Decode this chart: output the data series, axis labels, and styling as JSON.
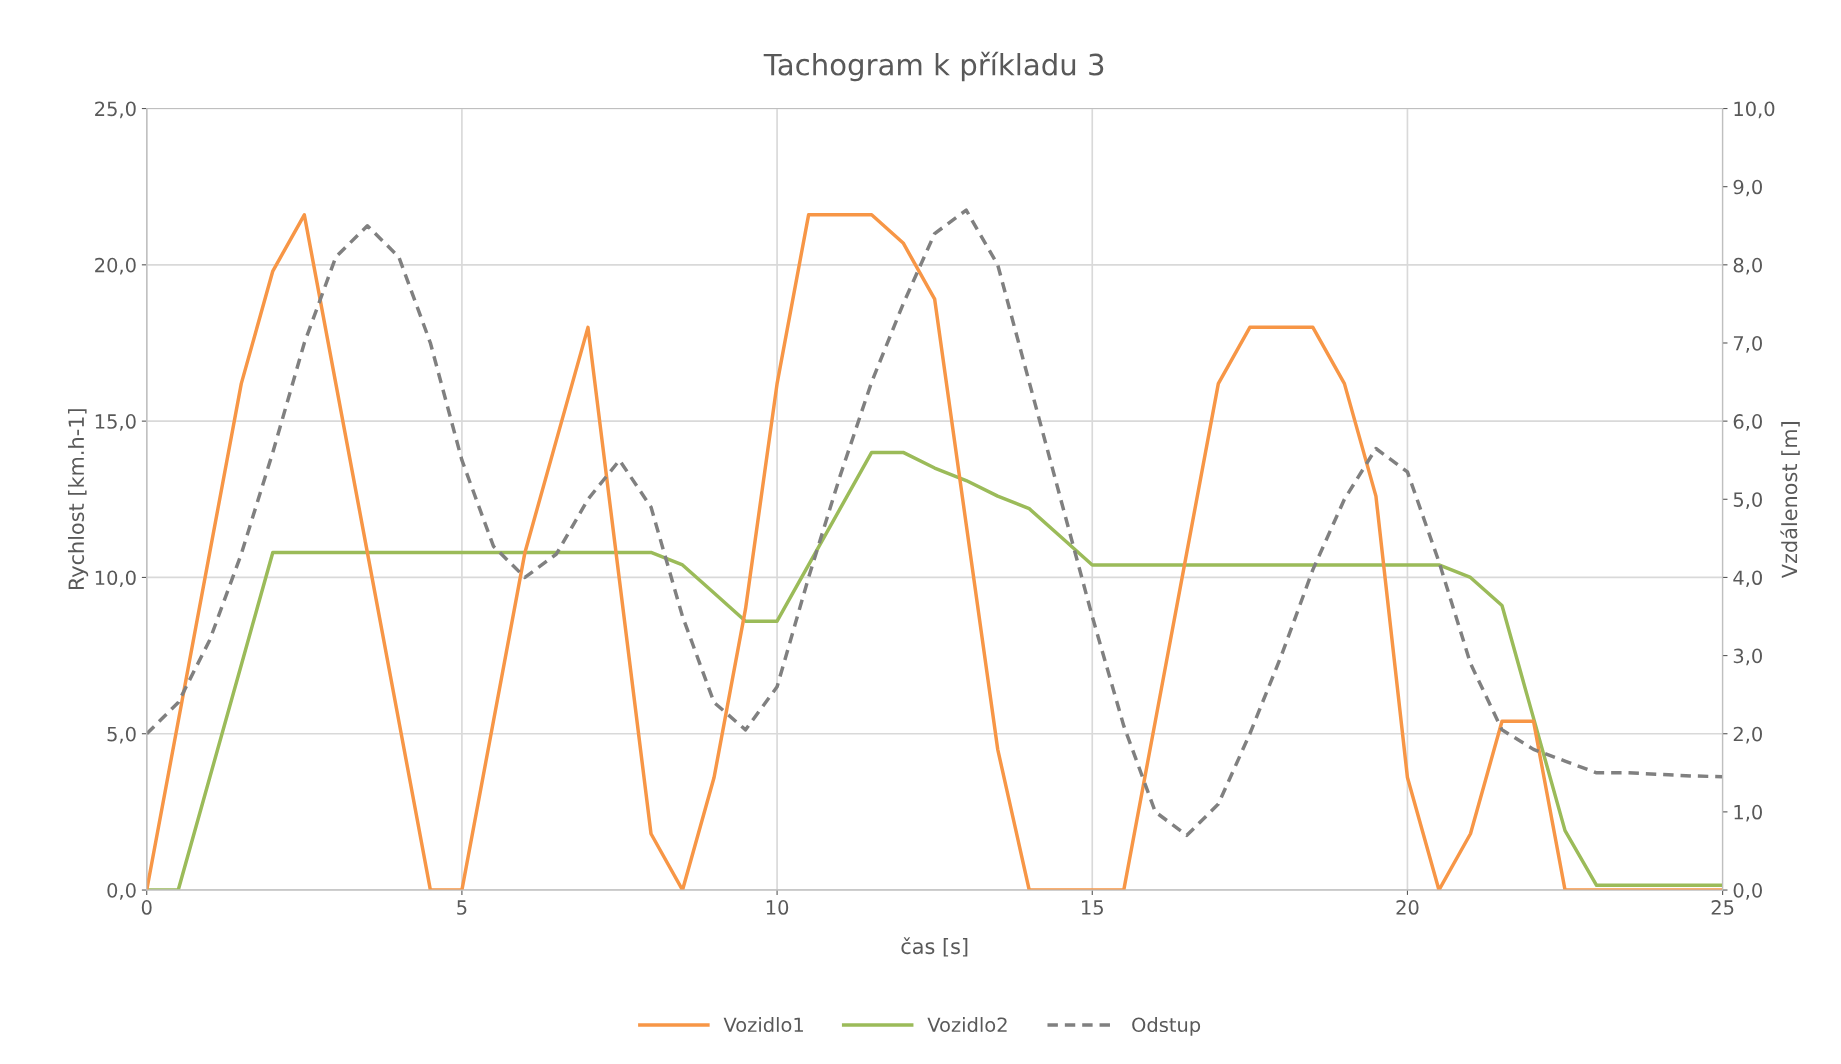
{
  "chart_data": {
    "type": "line",
    "title": "Tachogram k příkladu 3",
    "xlabel": "čas [s]",
    "ylabel": "Rychlost [km.h-1]",
    "y2label": "Vzdálenost [m]",
    "x": [
      0,
      0.5,
      1,
      1.5,
      2,
      2.5,
      3,
      3.5,
      4,
      4.5,
      5,
      5.5,
      6,
      6.5,
      7,
      7.5,
      8,
      8.5,
      9,
      9.5,
      10,
      10.5,
      11,
      11.5,
      12,
      12.5,
      13,
      13.5,
      14,
      14.5,
      15,
      15.5,
      16,
      16.5,
      17,
      17.5,
      18,
      18.5,
      19,
      19.5,
      20,
      20.5,
      21,
      21.5,
      22,
      22.5,
      23,
      23.5,
      24,
      24.5,
      25
    ],
    "series": [
      {
        "name": "Vozidlo1",
        "color": "#f79646",
        "line_style": "solid",
        "values": [
          0,
          5.4,
          10.8,
          16.2,
          19.8,
          21.6,
          16.2,
          10.8,
          5.4,
          0,
          0,
          5.4,
          10.8,
          14.4,
          18,
          9.9,
          1.8,
          0,
          3.6,
          9,
          16.2,
          21.6,
          21.6,
          21.6,
          20.7,
          18.9,
          11.7,
          4.5,
          0,
          0,
          0,
          0,
          5.4,
          10.8,
          16.2,
          18,
          18,
          18,
          16.2,
          12.6,
          3.6,
          0,
          1.8,
          5.4,
          5.4,
          0,
          0,
          0,
          0,
          0,
          0
        ]
      },
      {
        "name": "Vozidlo2",
        "color": "#9bbb59",
        "line_style": "solid",
        "values": [
          0,
          0,
          3.6,
          7.2,
          10.8,
          10.8,
          10.8,
          10.8,
          10.8,
          10.8,
          10.8,
          10.8,
          10.8,
          10.8,
          10.8,
          10.8,
          10.8,
          10.4,
          9.5,
          8.6,
          8.6,
          10.4,
          12.2,
          14,
          14,
          13.5,
          13.1,
          12.6,
          12.2,
          11.3,
          10.4,
          10.4,
          10.4,
          10.4,
          10.4,
          10.4,
          10.4,
          10.4,
          10.4,
          10.4,
          10.4,
          10.4,
          10,
          9.1,
          5.5,
          1.9,
          0.15,
          0.15,
          0.15,
          0.15,
          0.15
        ]
      },
      {
        "name": "Odstup",
        "color": "#808080",
        "line_style": "dashed",
        "axis": "y2",
        "values": [
          2,
          2.4,
          3.2,
          4.3,
          5.6,
          7,
          8.1,
          8.5,
          8.1,
          7,
          5.5,
          4.4,
          4,
          4.3,
          5,
          5.5,
          4.9,
          3.5,
          2.4,
          2.05,
          2.6,
          4,
          5.3,
          6.5,
          7.5,
          8.4,
          8.7,
          8,
          6.5,
          5,
          3.5,
          2.1,
          1,
          0.7,
          1.1,
          2,
          3,
          4.1,
          5,
          5.65,
          5.35,
          4.2,
          2.9,
          2.05,
          1.8,
          1.65,
          1.5,
          1.5,
          1.48,
          1.46,
          1.45
        ]
      }
    ],
    "xlim": [
      0,
      25
    ],
    "xticks": [
      0,
      5,
      10,
      15,
      20,
      25
    ],
    "ylim": [
      0,
      25
    ],
    "yticks": [
      {
        "value": 0,
        "label": "0,0"
      },
      {
        "value": 5,
        "label": "5,0"
      },
      {
        "value": 10,
        "label": "10,0"
      },
      {
        "value": 15,
        "label": "15,0"
      },
      {
        "value": 20,
        "label": "20,0"
      },
      {
        "value": 25,
        "label": "25,0"
      }
    ],
    "y2lim": [
      0,
      10
    ],
    "y2ticks": [
      {
        "value": 0,
        "label": "0,0"
      },
      {
        "value": 1,
        "label": "1,0"
      },
      {
        "value": 2,
        "label": "2,0"
      },
      {
        "value": 3,
        "label": "3,0"
      },
      {
        "value": 4,
        "label": "4,0"
      },
      {
        "value": 5,
        "label": "5,0"
      },
      {
        "value": 6,
        "label": "6,0"
      },
      {
        "value": 7,
        "label": "7,0"
      },
      {
        "value": 8,
        "label": "8,0"
      },
      {
        "value": 9,
        "label": "9,0"
      },
      {
        "value": 10,
        "label": "10,0"
      }
    ],
    "grid": true,
    "legend": "bottom",
    "marker": "none"
  }
}
